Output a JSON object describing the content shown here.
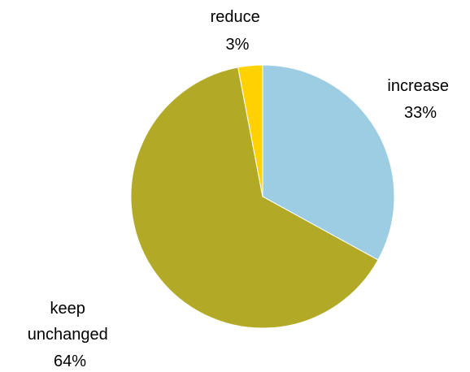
{
  "chart_data": {
    "type": "pie",
    "slices": [
      {
        "name": "increase",
        "value": 33,
        "label": "33%",
        "color": "#9dcde3"
      },
      {
        "name": "keep unchanged",
        "value": 64,
        "label": "64%",
        "color": "#b2aa27"
      },
      {
        "name": "reduce",
        "value": 3,
        "label": "3%",
        "color": "#ffd200"
      }
    ],
    "start": "12 o'clock",
    "direction": "clockwise",
    "legend": "none",
    "data_labels": "outside, category name and percent"
  }
}
